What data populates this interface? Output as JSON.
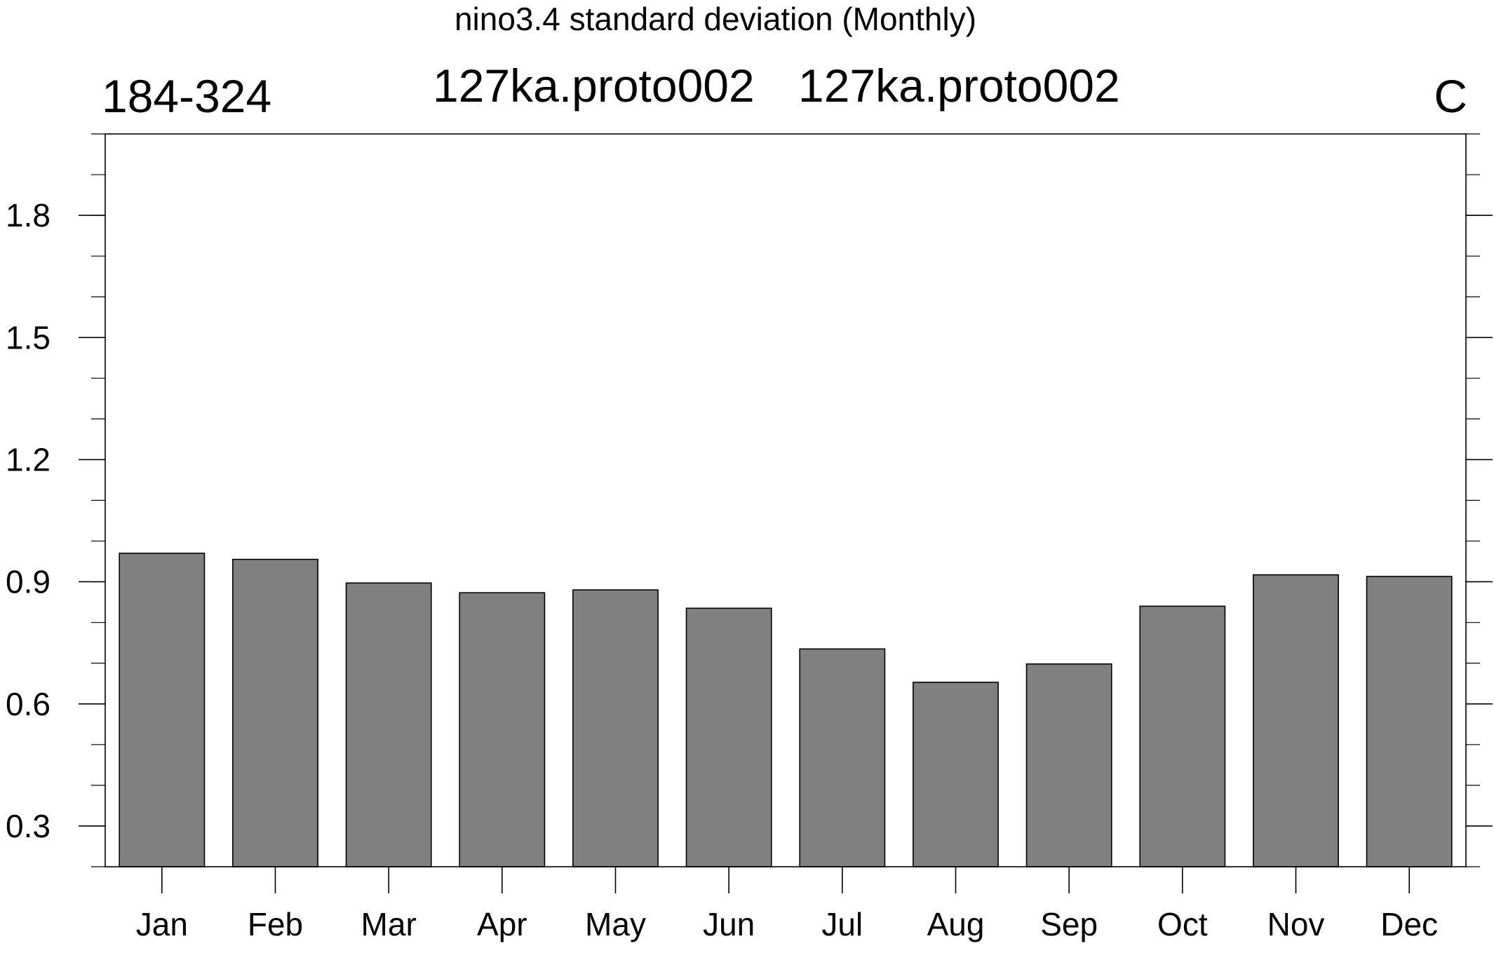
{
  "chart_data": {
    "type": "bar",
    "title": "nino3.4 standard deviation (Monthly)",
    "left_label": "184-324",
    "center_labels": [
      "127ka.proto002",
      "127ka.proto002"
    ],
    "right_label": "C",
    "xlabel": "",
    "ylabel": "",
    "categories": [
      "Jan",
      "Feb",
      "Mar",
      "Apr",
      "May",
      "Jun",
      "Jul",
      "Aug",
      "Sep",
      "Oct",
      "Nov",
      "Dec"
    ],
    "values": [
      0.97,
      0.955,
      0.897,
      0.873,
      0.88,
      0.835,
      0.735,
      0.653,
      0.698,
      0.84,
      0.917,
      0.913
    ],
    "ylim": [
      0.2,
      2.0
    ],
    "yticks": [
      0.3,
      0.6,
      0.9,
      1.2,
      1.5,
      1.8
    ],
    "ytick_labels": [
      "0.3",
      "0.6",
      "0.9",
      "1.2",
      "1.5",
      "1.8"
    ],
    "bar_color": "#808080",
    "grid": false,
    "legend": "none"
  }
}
